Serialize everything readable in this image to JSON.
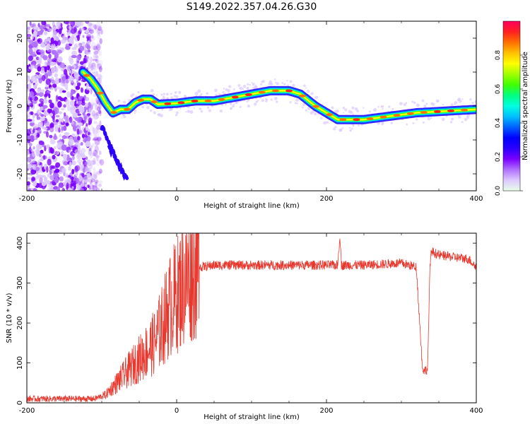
{
  "figure_title": "S149.2022.357.04.26.G30",
  "colors": {
    "axis": "#000000",
    "snr_line": "#e8382e",
    "colorbar": [
      "#e8ffe8",
      "#dcc8ff",
      "#b070ff",
      "#7a00ff",
      "#2a00ff",
      "#0000ff",
      "#0060ff",
      "#00c0ff",
      "#00ffe0",
      "#00ff80",
      "#40ff00",
      "#a0ff00",
      "#ffff00",
      "#ffc000",
      "#ff7000",
      "#ff2020",
      "#ff0060"
    ]
  },
  "chart_data": [
    {
      "type": "heatmap",
      "xlabel": "Height of straight line (km)",
      "ylabel": "Frequency (Hz)",
      "xlim": [
        -200,
        400
      ],
      "ylim": [
        -25,
        25
      ],
      "x_ticks": [
        -200,
        0,
        200,
        400
      ],
      "y_ticks": [
        -20,
        -10,
        0,
        10,
        20
      ],
      "grid": false,
      "colorbar": {
        "label": "Normalized spectral amplitude",
        "range": [
          0,
          1
        ],
        "ticks": [
          "0.0",
          "0.2",
          "0.4",
          "0.6",
          "0.8"
        ]
      },
      "ridge": {
        "x": [
          -125,
          -115,
          -105,
          -95,
          -85,
          -75,
          -65,
          -55,
          -45,
          -35,
          -25,
          0,
          25,
          50,
          75,
          100,
          125,
          150,
          165,
          185,
          200,
          215,
          250,
          285,
          320,
          360,
          400
        ],
        "y": [
          10,
          8,
          5,
          1,
          -2,
          -1,
          -1,
          1,
          2,
          2,
          0.5,
          0.8,
          1.5,
          1.5,
          2.5,
          3.5,
          4.5,
          4.5,
          3.5,
          0,
          -2,
          -4,
          -4,
          -3,
          -2,
          -1.5,
          -1
        ]
      },
      "noise_region_x": [
        -200,
        -110
      ]
    },
    {
      "type": "line",
      "xlabel": "Height of straight line (km)",
      "ylabel": "SNR (10 * v/v)",
      "xlim": [
        -200,
        400
      ],
      "ylim": [
        0,
        425
      ],
      "x_ticks": [
        -200,
        0,
        200,
        400
      ],
      "y_ticks": [
        0,
        100,
        200,
        300,
        400
      ],
      "grid": false,
      "series": [
        {
          "x": [
            -200,
            -150,
            -110,
            -95,
            -80,
            -70,
            -60,
            -50,
            -40,
            -30,
            -20,
            -10,
            0,
            10,
            20,
            30,
            50,
            100,
            150,
            200,
            215,
            218,
            220,
            250,
            300,
            320,
            328,
            330,
            335,
            338,
            340,
            345,
            350,
            370,
            390,
            400
          ],
          "y": [
            10,
            10,
            10,
            20,
            50,
            70,
            90,
            110,
            130,
            150,
            190,
            240,
            270,
            300,
            330,
            340,
            345,
            345,
            345,
            345,
            345,
            420,
            345,
            345,
            350,
            340,
            90,
            80,
            85,
            330,
            380,
            375,
            370,
            365,
            360,
            340
          ]
        }
      ]
    }
  ]
}
